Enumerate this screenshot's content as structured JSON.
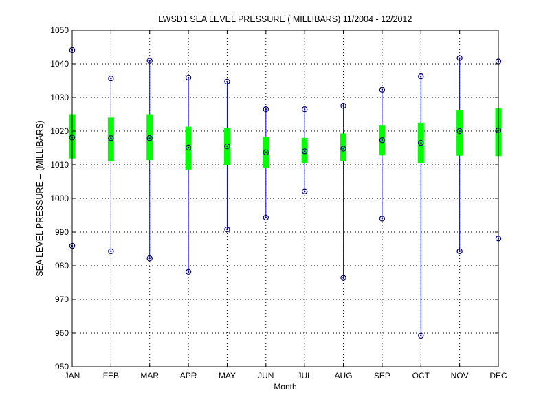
{
  "chart_data": {
    "type": "box",
    "title": "LWSD1  SEA LEVEL PRESSURE ( MILLIBARS) 11/2004 - 12/2012",
    "xlabel": "Month",
    "ylabel": "SEA LEVEL PRESSURE -- (MILLIBARS)",
    "ylim": [
      950,
      1050
    ],
    "yticks": [
      950,
      960,
      970,
      980,
      990,
      1000,
      1010,
      1020,
      1030,
      1040,
      1050
    ],
    "grid": true,
    "categories": [
      "JAN",
      "FEB",
      "MAR",
      "APR",
      "MAY",
      "JUN",
      "JUL",
      "AUG",
      "SEP",
      "OCT",
      "NOV",
      "DEC"
    ],
    "max": [
      1044.1,
      1035.7,
      1040.9,
      1035.9,
      1034.7,
      1026.5,
      1026.5,
      1027.5,
      1032.3,
      1036.3,
      1041.7,
      1040.7
    ],
    "min": [
      985.9,
      984.3,
      982.2,
      978.2,
      990.8,
      994.3,
      1002.1,
      976.4,
      994.0,
      959.2,
      984.3,
      988.1
    ],
    "mean": [
      1018.1,
      1017.9,
      1017.9,
      1015.1,
      1015.5,
      1013.7,
      1014.0,
      1014.8,
      1017.3,
      1016.5,
      1020.0,
      1020.2
    ],
    "upper": [
      1025.0,
      1024.0,
      1025.0,
      1021.3,
      1021.0,
      1018.3,
      1018.0,
      1019.3,
      1021.8,
      1022.5,
      1026.3,
      1026.8
    ],
    "lower": [
      1011.9,
      1011.0,
      1011.4,
      1008.6,
      1010.0,
      1009.2,
      1010.6,
      1011.2,
      1012.8,
      1010.5,
      1012.7,
      1012.6
    ],
    "colors": {
      "whisker": "#0000ff",
      "box": "#00ff00",
      "marker": "#000080",
      "grid": "#000000"
    }
  }
}
